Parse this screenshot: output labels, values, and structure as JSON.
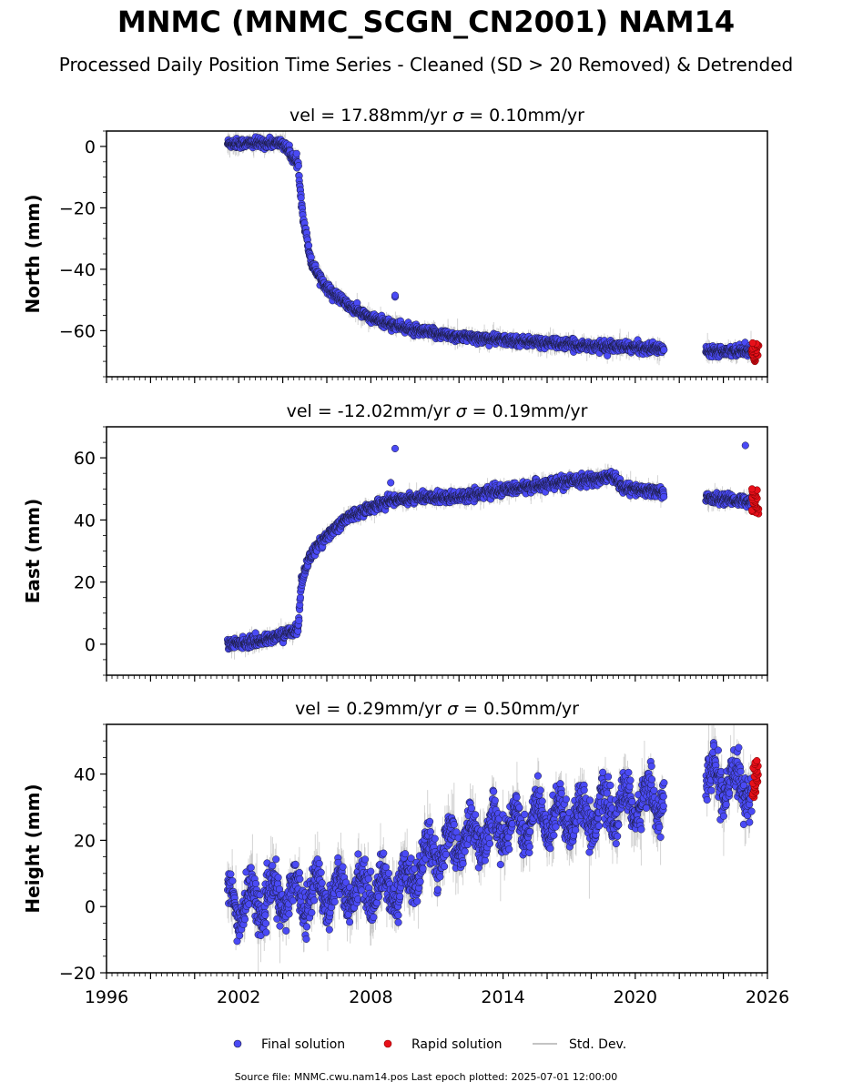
{
  "figure": {
    "title": "MNMC (MNMC_SCGN_CN2001) NAM14",
    "subtitle": "Processed Daily Position Time Series - Cleaned (SD > 20 Removed) & Detrended",
    "footer": "Source file: MNMC.cwu.nam14.pos  Last epoch plotted: 2025-07-01 12:00:00"
  },
  "legend": {
    "final": "Final solution",
    "rapid": "Rapid solution",
    "stddev": "Std. Dev."
  },
  "colors": {
    "final": "#4a4af5",
    "rapid": "#e8101a",
    "stddev": "#b0b0b0",
    "edge": "#1a1a3a"
  },
  "chart_data": [
    {
      "type": "scatter",
      "component": "north",
      "title": "vel = 17.88mm/yr   σ = 0.10mm/yr",
      "title_parts": {
        "vel": "vel = 17.88mm/yr",
        "sigma_sym": "σ",
        "sigma_val": " = 0.10mm/yr"
      },
      "ylabel": "North (mm)",
      "xlim": [
        1996,
        2026
      ],
      "ylim": [
        -75,
        5
      ],
      "yticks": [
        0,
        -20,
        -40,
        -60
      ],
      "ytick_labels": [
        "0",
        "−20",
        "−40",
        "−60"
      ],
      "show_xtick_labels": false,
      "final_profile": [
        [
          2001.5,
          1
        ],
        [
          2004.0,
          1
        ],
        [
          2004.7,
          -6
        ],
        [
          2004.9,
          -22
        ],
        [
          2005.3,
          -38
        ],
        [
          2006.0,
          -46
        ],
        [
          2007.0,
          -52
        ],
        [
          2008.0,
          -56
        ],
        [
          2009.0,
          -58
        ],
        [
          2010.0,
          -60
        ],
        [
          2012.0,
          -62
        ],
        [
          2014.0,
          -63
        ],
        [
          2016.0,
          -64
        ],
        [
          2018.0,
          -65
        ],
        [
          2020.0,
          -65.5
        ],
        [
          2021.3,
          -66
        ],
        [
          2023.2,
          -66.5
        ],
        [
          2025.3,
          -66.5
        ]
      ],
      "gap": [
        2021.3,
        2023.2
      ],
      "final_noise": 1.3,
      "stddev_max": 3,
      "outliers": [
        [
          2009.1,
          -49
        ],
        [
          2009.1,
          -48.5
        ]
      ],
      "rapid_x": [
        2025.3,
        2025.6
      ],
      "rapid_y": [
        -70,
        -64
      ]
    },
    {
      "type": "scatter",
      "component": "east",
      "title": "vel = -12.02mm/yr   σ = 0.19mm/yr",
      "title_parts": {
        "vel": "vel = -12.02mm/yr",
        "sigma_sym": "σ",
        "sigma_val": " = 0.19mm/yr"
      },
      "ylabel": "East (mm)",
      "xlim": [
        1996,
        2026
      ],
      "ylim": [
        -10,
        70
      ],
      "yticks": [
        0,
        20,
        40,
        60
      ],
      "ytick_labels": [
        "0",
        "20",
        "40",
        "60"
      ],
      "show_xtick_labels": false,
      "final_profile": [
        [
          2001.5,
          0
        ],
        [
          2003.0,
          1
        ],
        [
          2004.0,
          3
        ],
        [
          2004.7,
          5
        ],
        [
          2004.85,
          20
        ],
        [
          2005.2,
          28
        ],
        [
          2006.0,
          35
        ],
        [
          2007.0,
          41
        ],
        [
          2008.0,
          44
        ],
        [
          2009.0,
          46.5
        ],
        [
          2010.0,
          47
        ],
        [
          2012.0,
          47.5
        ],
        [
          2014.0,
          49.5
        ],
        [
          2016.0,
          51.5
        ],
        [
          2018.0,
          53
        ],
        [
          2019.0,
          54
        ],
        [
          2019.5,
          50
        ],
        [
          2021.3,
          49
        ],
        [
          2023.2,
          47
        ],
        [
          2025.3,
          46
        ]
      ],
      "gap": [
        2021.3,
        2023.2
      ],
      "final_noise": 1.4,
      "stddev_max": 3,
      "outliers": [
        [
          2009.1,
          63
        ],
        [
          2025.0,
          64
        ],
        [
          2008.9,
          52
        ]
      ],
      "rapid_x": [
        2025.3,
        2025.6
      ],
      "rapid_y": [
        42,
        50
      ]
    },
    {
      "type": "scatter",
      "component": "height",
      "title": "vel = 0.29mm/yr   σ = 0.50mm/yr",
      "title_parts": {
        "vel": "vel = 0.29mm/yr",
        "sigma_sym": "σ",
        "sigma_val": " = 0.50mm/yr"
      },
      "ylabel": "Height (mm)",
      "xlim": [
        1996,
        2026
      ],
      "xticks": [
        1996,
        2002,
        2008,
        2014,
        2020,
        2026
      ],
      "xtick_labels": [
        "1996",
        "2002",
        "2008",
        "2014",
        "2020",
        "2026"
      ],
      "ylim": [
        -20,
        55
      ],
      "yticks": [
        -20,
        0,
        20,
        40
      ],
      "ytick_labels": [
        "−20",
        "0",
        "20",
        "40"
      ],
      "show_xtick_labels": true,
      "final_profile": [
        [
          2001.5,
          0
        ],
        [
          2005.0,
          4
        ],
        [
          2009.5,
          6
        ],
        [
          2010.5,
          15
        ],
        [
          2012.0,
          20
        ],
        [
          2014.0,
          24
        ],
        [
          2016.0,
          27
        ],
        [
          2018.0,
          28
        ],
        [
          2020.0,
          31
        ],
        [
          2021.3,
          34
        ],
        [
          2023.2,
          38
        ],
        [
          2025.3,
          36
        ]
      ],
      "gap": [
        2021.3,
        2023.2
      ],
      "final_noise": 5,
      "seasonal_amp": 5,
      "stddev_max": 10,
      "outliers": [],
      "rapid_x": [
        2025.3,
        2025.6
      ],
      "rapid_y": [
        33,
        44
      ]
    }
  ]
}
